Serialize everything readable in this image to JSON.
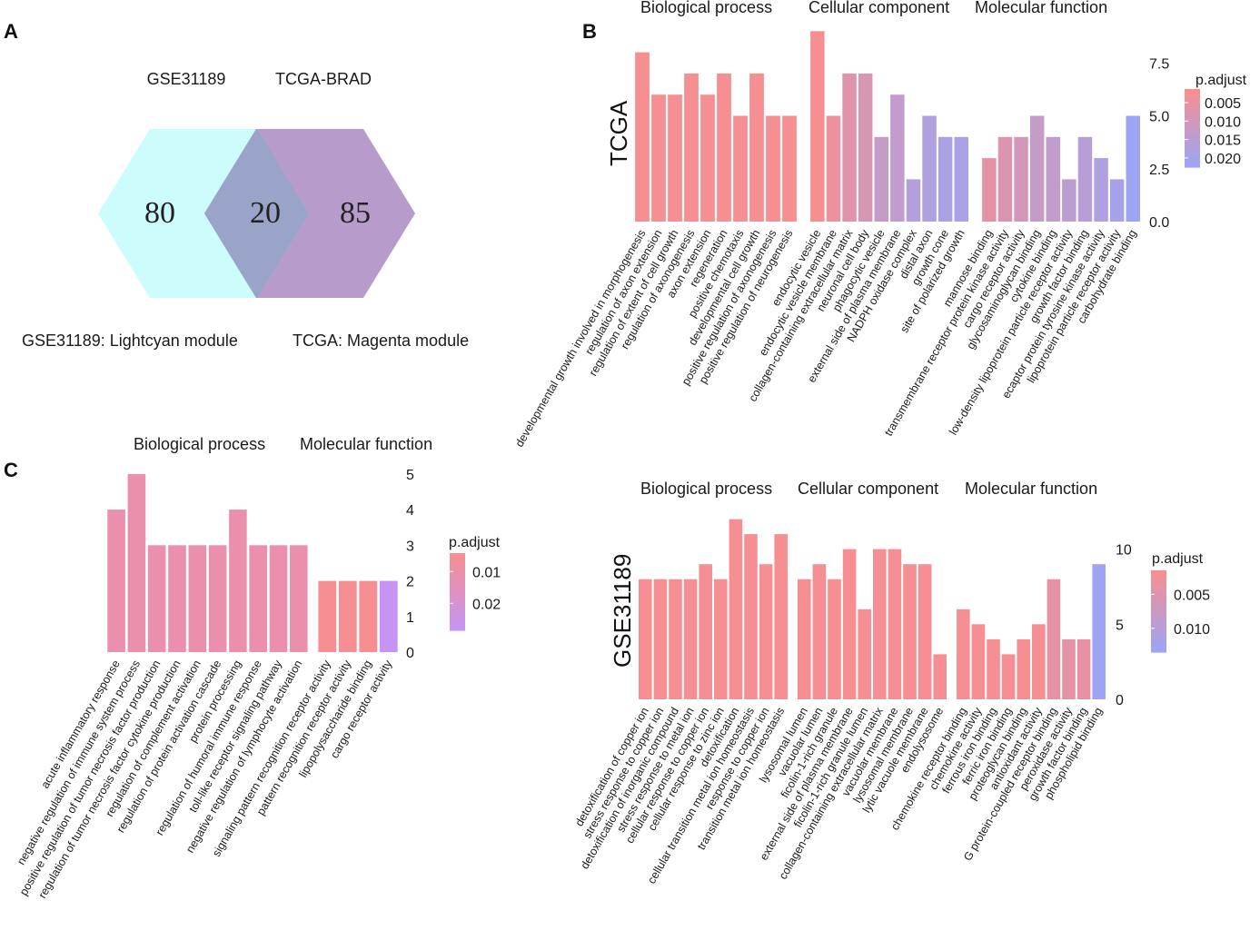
{
  "panels": {
    "a": "A",
    "b": "B",
    "c": "C"
  },
  "venn": {
    "set_left": "GSE31189",
    "set_right": "TCGA-BRAD",
    "count_left": "80",
    "count_overlap": "20",
    "count_right": "85",
    "caption_left": "GSE31189: Lightcyan module",
    "caption_right": "TCGA: Magenta module",
    "color_left": "#ccfcfb",
    "color_right": "#b79ccb",
    "color_overlap": "#9aa4c9"
  },
  "chart_data": [
    {
      "id": "tcga",
      "type": "bar",
      "row_label": "TCGA",
      "ylim": [
        0,
        9.1
      ],
      "yticks": [
        0,
        2.5,
        5,
        7.5
      ],
      "ytick_labels": [
        "0.0",
        "2.5",
        "5.0",
        "7.5"
      ],
      "legend": {
        "title": "p.adjust",
        "min": 0.0013,
        "max": 0.0225,
        "ticks": [
          0.005,
          0.01,
          0.015,
          0.02
        ],
        "tick_labels": [
          "0.005",
          "0.010",
          "0.015",
          "0.020"
        ],
        "color_low": "#f98e8f",
        "color_high": "#9ba5f6"
      },
      "facets": [
        {
          "title": "Biological process",
          "bars": [
            {
              "label": "developmental growth involved in morphogenesis",
              "value": 8,
              "padj": 0.002
            },
            {
              "label": "regulation of axon extension",
              "value": 6,
              "padj": 0.002
            },
            {
              "label": "regulation of extent of cell growth",
              "value": 6,
              "padj": 0.002
            },
            {
              "label": "regulation of axonogenesis",
              "value": 7,
              "padj": 0.002
            },
            {
              "label": "axon extension",
              "value": 6,
              "padj": 0.002
            },
            {
              "label": "regeneration",
              "value": 7,
              "padj": 0.002
            },
            {
              "label": "positive chemotaxis",
              "value": 5,
              "padj": 0.002
            },
            {
              "label": "developmental cell growth",
              "value": 7,
              "padj": 0.002
            },
            {
              "label": "positive regulation of axonogenesis",
              "value": 5,
              "padj": 0.002
            },
            {
              "label": "positive regulation of neurogenesis",
              "value": 5,
              "padj": 0.002
            }
          ]
        },
        {
          "title": "Cellular component",
          "bars": [
            {
              "label": "endocytic vesicle",
              "value": 9,
              "padj": 0.002
            },
            {
              "label": "endocytic vesicle membrane",
              "value": 5,
              "padj": 0.004
            },
            {
              "label": "collagen-containing extracellular matrix",
              "value": 7,
              "padj": 0.007
            },
            {
              "label": "neuronal cell body",
              "value": 7,
              "padj": 0.009
            },
            {
              "label": "phagocytic vesicle",
              "value": 4,
              "padj": 0.013
            },
            {
              "label": "external side of plasma membrane",
              "value": 6,
              "padj": 0.014
            },
            {
              "label": "NADPH oxidase complex",
              "value": 2,
              "padj": 0.017
            },
            {
              "label": "distal axon",
              "value": 5,
              "padj": 0.018
            },
            {
              "label": "growth cone",
              "value": 4,
              "padj": 0.019
            },
            {
              "label": "site of polarized growth",
              "value": 4,
              "padj": 0.019
            }
          ]
        },
        {
          "title": "Molecular function",
          "bars": [
            {
              "label": "mannose binding",
              "value": 3,
              "padj": 0.006
            },
            {
              "label": "transmembrane receptor protein kinase activity",
              "value": 4,
              "padj": 0.008
            },
            {
              "label": "cargo receptor activity",
              "value": 4,
              "padj": 0.01
            },
            {
              "label": "glycosaminoglycan binding",
              "value": 5,
              "padj": 0.013
            },
            {
              "label": "cytokine binding",
              "value": 4,
              "padj": 0.014
            },
            {
              "label": "low-density lipoprotein particle receptor activity",
              "value": 2,
              "padj": 0.015
            },
            {
              "label": "growth factor binding",
              "value": 4,
              "padj": 0.016
            },
            {
              "label": "ecaptor protein tyrosine kinase activity",
              "value": 3,
              "padj": 0.018
            },
            {
              "label": "lipoprotein particle receptor activity",
              "value": 2,
              "padj": 0.02
            },
            {
              "label": "carbohydrate binding",
              "value": 5,
              "padj": 0.022
            }
          ]
        }
      ]
    },
    {
      "id": "gse31189",
      "type": "bar",
      "row_label": "GSE31189",
      "ylim": [
        0,
        12.7
      ],
      "yticks": [
        0,
        5,
        10
      ],
      "ytick_labels": [
        "0",
        "5",
        "10"
      ],
      "legend": {
        "title": "p.adjust",
        "min": 0.0015,
        "max": 0.0135,
        "ticks": [
          0.005,
          0.01
        ],
        "tick_labels": [
          "0.005",
          "0.010"
        ],
        "color_low": "#f98e8f",
        "color_high": "#9ba5f6"
      },
      "facets": [
        {
          "title": "Biological process",
          "bars": [
            {
              "label": "detoxification of copper ion",
              "value": 8,
              "padj": 0.002
            },
            {
              "label": "stress response to copper ion",
              "value": 8,
              "padj": 0.002
            },
            {
              "label": "detoxification of inorganic compound",
              "value": 8,
              "padj": 0.002
            },
            {
              "label": "stress response to metal ion",
              "value": 8,
              "padj": 0.002
            },
            {
              "label": "cellular response to copper ion",
              "value": 9,
              "padj": 0.002
            },
            {
              "label": "cellular response to zinc ion",
              "value": 8,
              "padj": 0.002
            },
            {
              "label": "detoxification",
              "value": 12,
              "padj": 0.002
            },
            {
              "label": "cellular transition metal ion homeostasis",
              "value": 11,
              "padj": 0.002
            },
            {
              "label": "response to copper ion",
              "value": 9,
              "padj": 0.002
            },
            {
              "label": "transition metal ion homeostasis",
              "value": 11,
              "padj": 0.002
            }
          ]
        },
        {
          "title": "Cellular component",
          "bars": [
            {
              "label": "lysosomal lumen",
              "value": 8,
              "padj": 0.002
            },
            {
              "label": "vacuolar lumen",
              "value": 9,
              "padj": 0.002
            },
            {
              "label": "ficolin-1-rich granule",
              "value": 8,
              "padj": 0.002
            },
            {
              "label": "external side of plasma membrane",
              "value": 10,
              "padj": 0.002
            },
            {
              "label": "ficolin-1-rich granule lumen",
              "value": 6,
              "padj": 0.002
            },
            {
              "label": "collagen-containing extracellular matrix",
              "value": 10,
              "padj": 0.002
            },
            {
              "label": "vacuolar membrane",
              "value": 10,
              "padj": 0.002
            },
            {
              "label": "lysosomal membrane",
              "value": 9,
              "padj": 0.002
            },
            {
              "label": "lytic vacuole membrane",
              "value": 9,
              "padj": 0.002
            },
            {
              "label": "endolysosome",
              "value": 3,
              "padj": 0.002
            }
          ]
        },
        {
          "title": "Molecular function",
          "bars": [
            {
              "label": "chemokine receptor binding",
              "value": 6,
              "padj": 0.002
            },
            {
              "label": "chemokine activity",
              "value": 5,
              "padj": 0.002
            },
            {
              "label": "ferrous iron binding",
              "value": 4,
              "padj": 0.002
            },
            {
              "label": "ferric iron binding",
              "value": 3,
              "padj": 0.002
            },
            {
              "label": "proteoglycan binding",
              "value": 4,
              "padj": 0.002
            },
            {
              "label": "antioxidant activity",
              "value": 5,
              "padj": 0.002
            },
            {
              "label": "G protein-coupled receptor binding",
              "value": 8,
              "padj": 0.004
            },
            {
              "label": "peroxidase activity",
              "value": 4,
              "padj": 0.004
            },
            {
              "label": "growth factor binding",
              "value": 4,
              "padj": 0.004
            },
            {
              "label": "phospholipid binding",
              "value": 9,
              "padj": 0.013
            }
          ]
        }
      ]
    },
    {
      "id": "combined",
      "type": "bar",
      "row_label": "",
      "ylim": [
        0,
        5.15
      ],
      "yticks": [
        0,
        1,
        2,
        3,
        4,
        5
      ],
      "ytick_labels": [
        "0",
        "1",
        "2",
        "3",
        "4",
        "5"
      ],
      "legend": {
        "title": "p.adjust",
        "min": 0.0042,
        "max": 0.0285,
        "ticks": [
          0.01,
          0.02
        ],
        "tick_labels": [
          "0.01",
          "0.02"
        ],
        "color_low": "#f98e8f",
        "color_high": "#c694f6"
      },
      "facets": [
        {
          "title": "Biological process",
          "bars": [
            {
              "label": "acute inflammatory response",
              "value": 4,
              "padj": 0.011
            },
            {
              "label": "negative regulation of immune system process",
              "value": 5,
              "padj": 0.011
            },
            {
              "label": "positive regulation of tumor necrosis factor production",
              "value": 3,
              "padj": 0.011
            },
            {
              "label": "regulation of tumor necrosis factor cytokine production",
              "value": 3,
              "padj": 0.011
            },
            {
              "label": "regulation of complement activation",
              "value": 3,
              "padj": 0.011
            },
            {
              "label": "regulation of protein activation cascade",
              "value": 3,
              "padj": 0.011
            },
            {
              "label": "protein processing",
              "value": 4,
              "padj": 0.011
            },
            {
              "label": "regulation of humoral immune response",
              "value": 3,
              "padj": 0.011
            },
            {
              "label": "toll-like receptor signaling pathway",
              "value": 3,
              "padj": 0.011
            },
            {
              "label": "negative regulation of lymphocyte activation",
              "value": 3,
              "padj": 0.011
            }
          ]
        },
        {
          "title": "Molecular function",
          "bars": [
            {
              "label": "signaling pattern recognition receptor activity",
              "value": 2,
              "padj": 0.005
            },
            {
              "label": "pattern recognition receptor activity",
              "value": 2,
              "padj": 0.005
            },
            {
              "label": "lipopolysaccharide binding",
              "value": 2,
              "padj": 0.005
            },
            {
              "label": "cargo receptor activity",
              "value": 2,
              "padj": 0.028
            }
          ]
        }
      ]
    }
  ]
}
